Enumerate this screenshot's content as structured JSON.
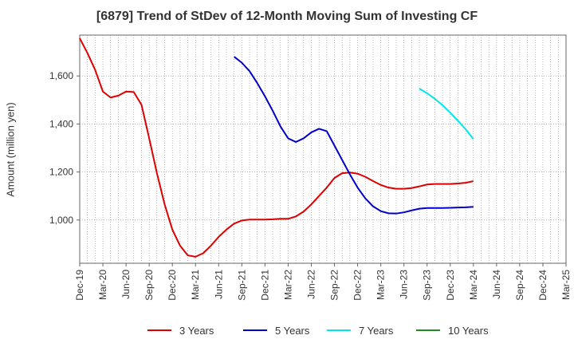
{
  "chart_data": {
    "type": "line",
    "title": "[6879]  Trend of StDev of 12-Month Moving Sum of Investing CF",
    "xlabel": "",
    "ylabel": "Amount (million yen)",
    "ylim": [
      820,
      1770
    ],
    "yticks": [
      1000,
      1200,
      1400,
      1600
    ],
    "ytick_labels": [
      "1,000",
      "1,200",
      "1,400",
      "1,600"
    ],
    "x_start": "2019-12",
    "x_end": "2025-03",
    "xtick_labels": [
      "Dec-19",
      "Mar-20",
      "Jun-20",
      "Sep-20",
      "Dec-20",
      "Mar-21",
      "Jun-21",
      "Sep-21",
      "Dec-21",
      "Mar-22",
      "Jun-22",
      "Sep-22",
      "Dec-22",
      "Mar-23",
      "Jun-23",
      "Sep-23",
      "Dec-23",
      "Mar-24",
      "Jun-24",
      "Sep-24",
      "Dec-24",
      "Mar-25"
    ],
    "grid": true,
    "legend_position": "bottom",
    "series": [
      {
        "name": "3 Years",
        "color": "#dd0000",
        "start": "2019-12",
        "values": [
          1757,
          1695,
          1625,
          1535,
          1510,
          1518,
          1535,
          1533,
          1480,
          1340,
          1195,
          1065,
          960,
          893,
          853,
          847,
          862,
          893,
          930,
          960,
          985,
          998,
          1002,
          1002,
          1002,
          1003,
          1005,
          1005,
          1015,
          1035,
          1065,
          1100,
          1135,
          1175,
          1195,
          1198,
          1193,
          1180,
          1162,
          1146,
          1135,
          1130,
          1130,
          1133,
          1140,
          1148,
          1150,
          1150,
          1150,
          1152,
          1155,
          1162
        ]
      },
      {
        "name": "5 Years",
        "color": "#0000cc",
        "start": "2021-08",
        "values": [
          1680,
          1655,
          1620,
          1570,
          1515,
          1455,
          1390,
          1340,
          1325,
          1340,
          1365,
          1380,
          1370,
          1310,
          1250,
          1190,
          1135,
          1090,
          1057,
          1037,
          1028,
          1027,
          1032,
          1040,
          1047,
          1050,
          1050,
          1050,
          1051,
          1052,
          1053,
          1055
        ]
      },
      {
        "name": "7 Years",
        "color": "#00e5ee",
        "start": "2023-08",
        "values": [
          1547,
          1528,
          1505,
          1478,
          1447,
          1413,
          1378,
          1337
        ]
      },
      {
        "name": "10 Years",
        "color": "#228b22",
        "start": "2024-03",
        "values": []
      }
    ]
  }
}
